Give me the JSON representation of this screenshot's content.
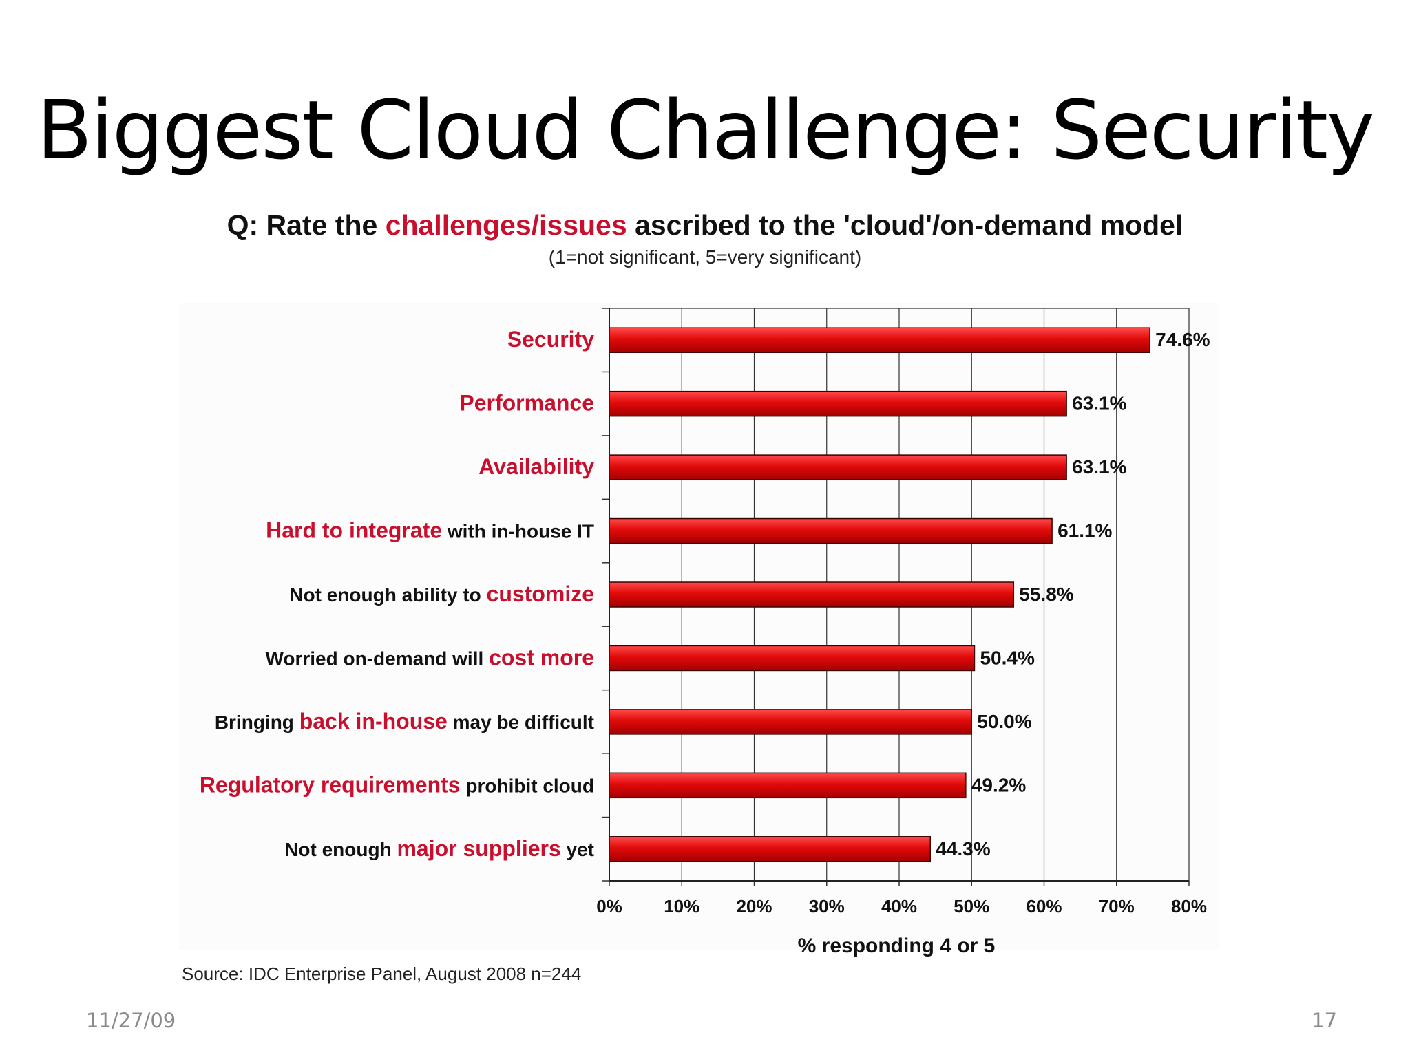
{
  "slide": {
    "title": "Biggest Cloud Challenge: Security",
    "footer_date": "11/27/09",
    "page_number": "17"
  },
  "colors": {
    "bar": "#e10b0b",
    "highlight_text": "#c8102e",
    "plain_text": "#111111"
  },
  "chart_data": {
    "type": "bar",
    "orientation": "horizontal",
    "title_parts": [
      {
        "text": "Q: Rate the ",
        "highlight": false
      },
      {
        "text": "challenges/issues",
        "highlight": true
      },
      {
        "text": " ascribed to the 'cloud'/on-demand model",
        "highlight": false
      }
    ],
    "subtitle": "(1=not significant, 5=very significant)",
    "xlabel": "% responding 4 or 5",
    "xlim": [
      0,
      80
    ],
    "x_ticks": [
      "0%",
      "10%",
      "20%",
      "30%",
      "40%",
      "50%",
      "60%",
      "70%",
      "80%"
    ],
    "grid": "vertical",
    "categories": [
      {
        "parts": [
          {
            "text": "Security",
            "highlight": true
          }
        ]
      },
      {
        "parts": [
          {
            "text": "Performance",
            "highlight": true
          }
        ]
      },
      {
        "parts": [
          {
            "text": "Availability",
            "highlight": true
          }
        ]
      },
      {
        "parts": [
          {
            "text": "Hard to integrate",
            "highlight": true
          },
          {
            "text": " with in-house IT",
            "highlight": false
          }
        ]
      },
      {
        "parts": [
          {
            "text": "Not enough ability to ",
            "highlight": false
          },
          {
            "text": "customize",
            "highlight": true
          }
        ]
      },
      {
        "parts": [
          {
            "text": "Worried on-demand will ",
            "highlight": false
          },
          {
            "text": "cost more",
            "highlight": true
          }
        ]
      },
      {
        "parts": [
          {
            "text": "Bringing ",
            "highlight": false
          },
          {
            "text": "back in-house",
            "highlight": true
          },
          {
            "text": " may be difficult",
            "highlight": false
          }
        ]
      },
      {
        "parts": [
          {
            "text": "Regulatory requirements",
            "highlight": true
          },
          {
            "text": " prohibit cloud",
            "highlight": false
          }
        ]
      },
      {
        "parts": [
          {
            "text": "Not enough ",
            "highlight": false
          },
          {
            "text": "major suppliers",
            "highlight": true
          },
          {
            "text": " yet",
            "highlight": false
          }
        ]
      }
    ],
    "values": [
      74.6,
      63.1,
      63.1,
      61.1,
      55.8,
      50.4,
      50.0,
      49.2,
      44.3
    ],
    "data_labels": [
      "74.6%",
      "63.1%",
      "63.1%",
      "61.1%",
      "55.8%",
      "50.4%",
      "50.0%",
      "49.2%",
      "44.3%"
    ],
    "source": "Source:  IDC Enterprise Panel, August 2008   n=244"
  }
}
